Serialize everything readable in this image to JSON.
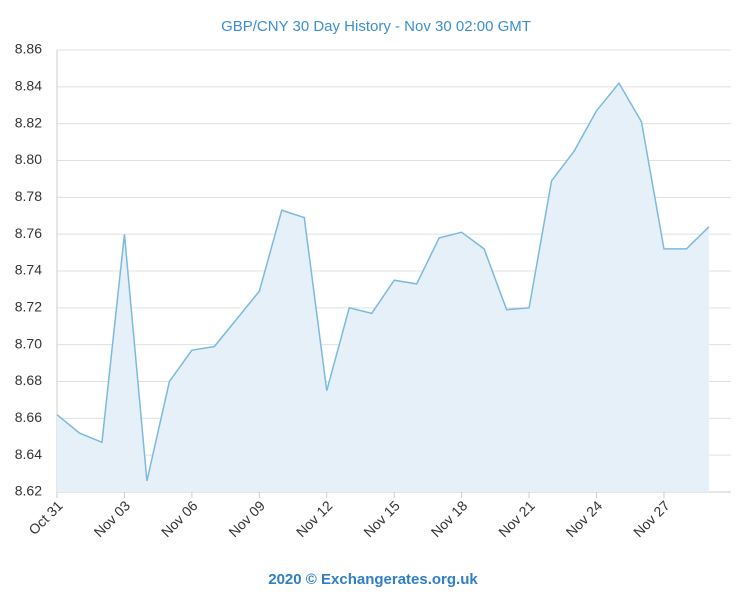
{
  "chart_data": {
    "type": "area",
    "title": "GBP/CNY 30 Day History - Nov 30 02:00 GMT",
    "footer": "2020 © Exchangerates.org.uk",
    "categories": [
      "Oct 31",
      null,
      null,
      "Nov 03",
      null,
      null,
      "Nov 06",
      null,
      null,
      "Nov 09",
      null,
      null,
      "Nov 12",
      null,
      null,
      "Nov 15",
      null,
      null,
      "Nov 18",
      null,
      null,
      "Nov 21",
      null,
      null,
      "Nov 24",
      null,
      null,
      "Nov 27",
      null,
      null
    ],
    "values": [
      8.662,
      8.652,
      8.647,
      8.76,
      8.626,
      8.68,
      8.697,
      8.699,
      8.714,
      8.729,
      8.773,
      8.769,
      8.675,
      8.72,
      8.717,
      8.735,
      8.733,
      8.758,
      8.761,
      8.752,
      8.719,
      8.72,
      8.789,
      8.805,
      8.827,
      8.842,
      8.821,
      8.752,
      8.752,
      8.764
    ],
    "color": "#7cb9e0",
    "fill_color": "#e6f0f9",
    "ylim": [
      8.62,
      8.86
    ],
    "yticks": [
      8.62,
      8.64,
      8.66,
      8.68,
      {
        "value": 8.7,
        "label": "8.70"
      },
      8.72,
      8.74,
      8.76,
      8.78,
      {
        "value": 8.8,
        "label": "8.80"
      },
      8.82,
      8.84,
      8.86
    ],
    "grid": true
  }
}
